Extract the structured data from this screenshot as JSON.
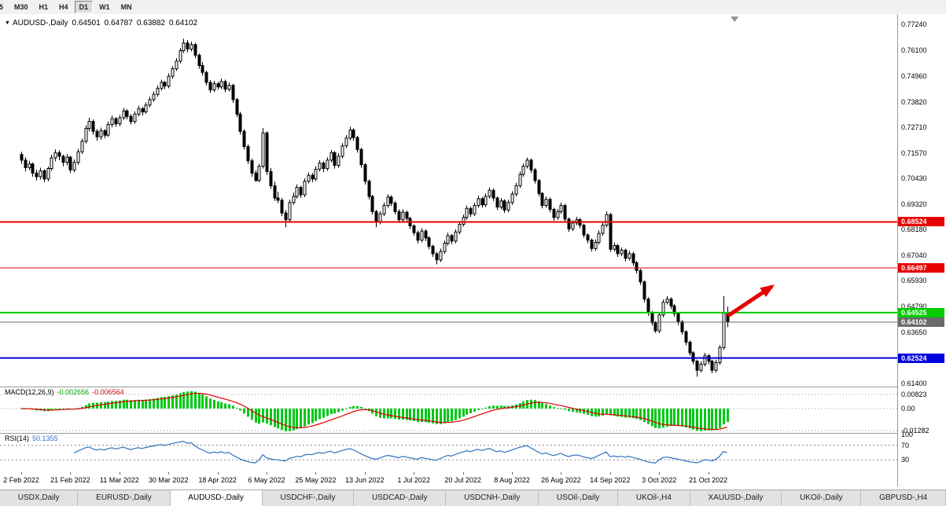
{
  "toolbar": {
    "periods": [
      {
        "label": "5",
        "active": false
      },
      {
        "label": "M30",
        "active": false
      },
      {
        "label": "H1",
        "active": false
      },
      {
        "label": "H4",
        "active": false
      },
      {
        "label": "D1",
        "active": true
      },
      {
        "label": "W1",
        "active": false
      },
      {
        "label": "MN",
        "active": false
      }
    ]
  },
  "chart": {
    "title": {
      "dropdown_icon": "▼",
      "symbol": "AUDUSD-,Daily",
      "open": "0.64501",
      "high": "0.64787",
      "low": "0.63882",
      "close": "0.64102"
    }
  },
  "chart_data": {
    "type": "candlestick",
    "symbol": "AUDUSD",
    "timeframe": "Daily",
    "y_axis": {
      "labels": [
        "0.77240",
        "0.76100",
        "0.74960",
        "0.73820",
        "0.72710",
        "0.71570",
        "0.70430",
        "0.69320",
        "0.68180",
        "0.67040",
        "0.65930",
        "0.64790",
        "0.63650",
        "0.62510",
        "0.61400"
      ],
      "top_price": 0.7724,
      "bottom_price": 0.614
    },
    "x_axis_labels": [
      "2 Feb 2022",
      "21 Feb 2022",
      "11 Mar 2022",
      "30 Mar 2022",
      "18 Apr 2022",
      "6 May 2022",
      "25 May 2022",
      "13 Jun 2022",
      "1 Jul 2022",
      "20 Jul 2022",
      "8 Aug 2022",
      "26 Aug 2022",
      "14 Sep 2022",
      "3 Oct 2022",
      "21 Oct 2022"
    ],
    "x_label_step": 13,
    "levels": [
      {
        "price": 0.68524,
        "label": "0.68524",
        "color": "#e60000",
        "thickness": 2,
        "role": "resistance"
      },
      {
        "price": 0.66497,
        "label": "0.66497",
        "color": "#e60000",
        "thickness": 1,
        "role": "resistance"
      },
      {
        "price": 0.64525,
        "label": "0.64525",
        "color": "#00cc00",
        "thickness": 2,
        "role": "support"
      },
      {
        "price": 0.64102,
        "label": "0.64102",
        "color": "#6b6b6b",
        "thickness": 1,
        "role": "last-price"
      },
      {
        "price": 0.62524,
        "label": "0.62524",
        "color": "#0000dd",
        "thickness": 2,
        "role": "support"
      }
    ],
    "candles": [
      [
        0.715,
        0.7162,
        0.7108,
        0.7125
      ],
      [
        0.7125,
        0.7138,
        0.7075,
        0.7092
      ],
      [
        0.7092,
        0.7122,
        0.708,
        0.7108
      ],
      [
        0.7108,
        0.7115,
        0.7052,
        0.7068
      ],
      [
        0.7068,
        0.7082,
        0.7035,
        0.7052
      ],
      [
        0.7052,
        0.7092,
        0.704,
        0.7078
      ],
      [
        0.7078,
        0.7085,
        0.7028,
        0.7042
      ],
      [
        0.7042,
        0.7098,
        0.7032,
        0.7088
      ],
      [
        0.7088,
        0.7148,
        0.7078,
        0.7135
      ],
      [
        0.7135,
        0.7172,
        0.712,
        0.7158
      ],
      [
        0.7158,
        0.7168,
        0.7125,
        0.7142
      ],
      [
        0.7142,
        0.715,
        0.7098,
        0.7115
      ],
      [
        0.7115,
        0.7152,
        0.7102,
        0.7138
      ],
      [
        0.7138,
        0.7145,
        0.7068,
        0.7082
      ],
      [
        0.7082,
        0.7128,
        0.7072,
        0.7115
      ],
      [
        0.7115,
        0.7175,
        0.7105,
        0.7162
      ],
      [
        0.7162,
        0.722,
        0.7152,
        0.7208
      ],
      [
        0.7208,
        0.7278,
        0.7198,
        0.7265
      ],
      [
        0.7265,
        0.7312,
        0.7252,
        0.7296
      ],
      [
        0.7296,
        0.7305,
        0.7238,
        0.7252
      ],
      [
        0.7252,
        0.7262,
        0.721,
        0.7228
      ],
      [
        0.7228,
        0.7268,
        0.7215,
        0.7255
      ],
      [
        0.7255,
        0.7262,
        0.7222,
        0.7235
      ],
      [
        0.7235,
        0.7295,
        0.7228,
        0.7282
      ],
      [
        0.7282,
        0.7322,
        0.727,
        0.7308
      ],
      [
        0.7308,
        0.7315,
        0.7272,
        0.7285
      ],
      [
        0.7285,
        0.7325,
        0.7275,
        0.7312
      ],
      [
        0.7312,
        0.7355,
        0.7302,
        0.7342
      ],
      [
        0.7342,
        0.735,
        0.7305,
        0.7318
      ],
      [
        0.7318,
        0.7328,
        0.7282,
        0.7295
      ],
      [
        0.7295,
        0.734,
        0.7285,
        0.7328
      ],
      [
        0.7328,
        0.7365,
        0.7318,
        0.7352
      ],
      [
        0.7352,
        0.736,
        0.7322,
        0.7338
      ],
      [
        0.7338,
        0.738,
        0.733,
        0.7368
      ],
      [
        0.7368,
        0.7405,
        0.7358,
        0.7392
      ],
      [
        0.7392,
        0.7428,
        0.7382,
        0.7415
      ],
      [
        0.7415,
        0.7455,
        0.7405,
        0.7442
      ],
      [
        0.7442,
        0.748,
        0.7432,
        0.7468
      ],
      [
        0.7468,
        0.7475,
        0.7438,
        0.7452
      ],
      [
        0.7452,
        0.7508,
        0.7442,
        0.7495
      ],
      [
        0.7495,
        0.754,
        0.7485,
        0.7528
      ],
      [
        0.7528,
        0.7575,
        0.7518,
        0.7562
      ],
      [
        0.7562,
        0.762,
        0.7552,
        0.7608
      ],
      [
        0.7608,
        0.7661,
        0.7598,
        0.7642
      ],
      [
        0.7642,
        0.7655,
        0.76,
        0.7615
      ],
      [
        0.7615,
        0.7648,
        0.7605,
        0.7635
      ],
      [
        0.7635,
        0.7642,
        0.7575,
        0.7588
      ],
      [
        0.7588,
        0.7595,
        0.7528,
        0.7542
      ],
      [
        0.7542,
        0.7558,
        0.7498,
        0.7512
      ],
      [
        0.7512,
        0.752,
        0.7455,
        0.7468
      ],
      [
        0.7468,
        0.7478,
        0.7422,
        0.7435
      ],
      [
        0.7435,
        0.7475,
        0.7425,
        0.7462
      ],
      [
        0.7462,
        0.747,
        0.7435,
        0.7448
      ],
      [
        0.7448,
        0.7485,
        0.7438,
        0.7472
      ],
      [
        0.7472,
        0.748,
        0.7425,
        0.7438
      ],
      [
        0.7438,
        0.7468,
        0.7428,
        0.7455
      ],
      [
        0.7455,
        0.7462,
        0.7378,
        0.7392
      ],
      [
        0.7392,
        0.74,
        0.7315,
        0.7328
      ],
      [
        0.7328,
        0.7338,
        0.7238,
        0.7252
      ],
      [
        0.7252,
        0.7262,
        0.7172,
        0.7185
      ],
      [
        0.7185,
        0.7195,
        0.7108,
        0.7122
      ],
      [
        0.7122,
        0.7132,
        0.7052,
        0.7068
      ],
      [
        0.7068,
        0.708,
        0.703,
        0.7035
      ],
      [
        0.7035,
        0.7108,
        0.7028,
        0.7098
      ],
      [
        0.7098,
        0.7266,
        0.7088,
        0.7245
      ],
      [
        0.7245,
        0.7252,
        0.706,
        0.7075
      ],
      [
        0.7075,
        0.709,
        0.6998,
        0.7012
      ],
      [
        0.7012,
        0.703,
        0.6945,
        0.6958
      ],
      [
        0.6958,
        0.6985,
        0.6935,
        0.6948
      ],
      [
        0.6948,
        0.6958,
        0.6878,
        0.6892
      ],
      [
        0.6892,
        0.6905,
        0.6829,
        0.6862
      ],
      [
        0.6862,
        0.695,
        0.6852,
        0.6938
      ],
      [
        0.6938,
        0.6982,
        0.6928,
        0.6965
      ],
      [
        0.6965,
        0.7018,
        0.6955,
        0.7005
      ],
      [
        0.7005,
        0.7012,
        0.6958,
        0.6972
      ],
      [
        0.6972,
        0.7045,
        0.6962,
        0.7032
      ],
      [
        0.7032,
        0.707,
        0.7022,
        0.7058
      ],
      [
        0.7058,
        0.7068,
        0.7028,
        0.7042
      ],
      [
        0.7042,
        0.7098,
        0.7032,
        0.7085
      ],
      [
        0.7085,
        0.7125,
        0.7075,
        0.7112
      ],
      [
        0.7112,
        0.712,
        0.7072,
        0.7088
      ],
      [
        0.7088,
        0.7138,
        0.7078,
        0.7125
      ],
      [
        0.7125,
        0.717,
        0.7115,
        0.7158
      ],
      [
        0.7158,
        0.7165,
        0.7088,
        0.7102
      ],
      [
        0.7102,
        0.7155,
        0.7092,
        0.7142
      ],
      [
        0.7142,
        0.72,
        0.7132,
        0.7188
      ],
      [
        0.7188,
        0.7235,
        0.7178,
        0.7222
      ],
      [
        0.7222,
        0.7272,
        0.7212,
        0.7258
      ],
      [
        0.7258,
        0.7265,
        0.721,
        0.7225
      ],
      [
        0.7225,
        0.7232,
        0.7158,
        0.7172
      ],
      [
        0.7172,
        0.718,
        0.7092,
        0.7105
      ],
      [
        0.7105,
        0.7112,
        0.7018,
        0.7032
      ],
      [
        0.7032,
        0.704,
        0.6952,
        0.6965
      ],
      [
        0.6965,
        0.6972,
        0.6885,
        0.6898
      ],
      [
        0.6898,
        0.6905,
        0.6829,
        0.6852
      ],
      [
        0.6852,
        0.69,
        0.6842,
        0.6888
      ],
      [
        0.6888,
        0.6938,
        0.6878,
        0.6925
      ],
      [
        0.6925,
        0.6975,
        0.6915,
        0.6962
      ],
      [
        0.6962,
        0.697,
        0.6922,
        0.6935
      ],
      [
        0.6935,
        0.6945,
        0.6885,
        0.6898
      ],
      [
        0.6898,
        0.6908,
        0.6848,
        0.6862
      ],
      [
        0.6862,
        0.6908,
        0.6852,
        0.6895
      ],
      [
        0.6895,
        0.6902,
        0.6855,
        0.6868
      ],
      [
        0.6868,
        0.6875,
        0.6822,
        0.6835
      ],
      [
        0.6835,
        0.6842,
        0.6792,
        0.6805
      ],
      [
        0.6805,
        0.6815,
        0.6758,
        0.6772
      ],
      [
        0.6772,
        0.6825,
        0.6762,
        0.6812
      ],
      [
        0.6812,
        0.682,
        0.6768,
        0.6782
      ],
      [
        0.6782,
        0.679,
        0.6732,
        0.6745
      ],
      [
        0.6745,
        0.6752,
        0.6698,
        0.6712
      ],
      [
        0.6712,
        0.672,
        0.6665,
        0.6685
      ],
      [
        0.6685,
        0.6735,
        0.6675,
        0.6722
      ],
      [
        0.6722,
        0.677,
        0.6712,
        0.6758
      ],
      [
        0.6758,
        0.6805,
        0.6748,
        0.6792
      ],
      [
        0.6792,
        0.68,
        0.6755,
        0.6768
      ],
      [
        0.6768,
        0.682,
        0.6758,
        0.6808
      ],
      [
        0.6808,
        0.6855,
        0.6798,
        0.6842
      ],
      [
        0.6842,
        0.6885,
        0.6832,
        0.6872
      ],
      [
        0.6872,
        0.6925,
        0.6862,
        0.6912
      ],
      [
        0.6912,
        0.692,
        0.6875,
        0.6888
      ],
      [
        0.6888,
        0.6938,
        0.6878,
        0.6925
      ],
      [
        0.6925,
        0.6968,
        0.6915,
        0.6955
      ],
      [
        0.6955,
        0.6962,
        0.6915,
        0.6928
      ],
      [
        0.6928,
        0.6978,
        0.6918,
        0.6965
      ],
      [
        0.6965,
        0.7005,
        0.6955,
        0.6992
      ],
      [
        0.6992,
        0.7,
        0.6945,
        0.6958
      ],
      [
        0.6958,
        0.6965,
        0.6905,
        0.6918
      ],
      [
        0.6918,
        0.6958,
        0.6908,
        0.6945
      ],
      [
        0.6945,
        0.6952,
        0.6892,
        0.6905
      ],
      [
        0.6905,
        0.695,
        0.6895,
        0.6938
      ],
      [
        0.6938,
        0.6988,
        0.6928,
        0.6975
      ],
      [
        0.6975,
        0.7025,
        0.6965,
        0.7012
      ],
      [
        0.7012,
        0.7075,
        0.7002,
        0.7062
      ],
      [
        0.7062,
        0.711,
        0.7052,
        0.7098
      ],
      [
        0.7098,
        0.7136,
        0.7088,
        0.7125
      ],
      [
        0.7125,
        0.7132,
        0.7068,
        0.7082
      ],
      [
        0.7082,
        0.709,
        0.7022,
        0.7035
      ],
      [
        0.7035,
        0.7042,
        0.6965,
        0.6978
      ],
      [
        0.6978,
        0.6985,
        0.6912,
        0.6925
      ],
      [
        0.6925,
        0.6965,
        0.6915,
        0.6952
      ],
      [
        0.6952,
        0.696,
        0.6895,
        0.6908
      ],
      [
        0.6908,
        0.6915,
        0.6858,
        0.6872
      ],
      [
        0.6872,
        0.691,
        0.6862,
        0.6898
      ],
      [
        0.6898,
        0.6938,
        0.6888,
        0.6925
      ],
      [
        0.6925,
        0.6932,
        0.6852,
        0.6865
      ],
      [
        0.6865,
        0.6872,
        0.6808,
        0.6822
      ],
      [
        0.6822,
        0.686,
        0.6812,
        0.6848
      ],
      [
        0.6848,
        0.6875,
        0.6838,
        0.6862
      ],
      [
        0.6862,
        0.687,
        0.6825,
        0.6838
      ],
      [
        0.6838,
        0.6845,
        0.6782,
        0.6795
      ],
      [
        0.6795,
        0.6802,
        0.6758,
        0.6772
      ],
      [
        0.6772,
        0.678,
        0.6722,
        0.6735
      ],
      [
        0.6735,
        0.6775,
        0.6725,
        0.6762
      ],
      [
        0.6762,
        0.6815,
        0.6752,
        0.6802
      ],
      [
        0.6802,
        0.685,
        0.6792,
        0.6838
      ],
      [
        0.6838,
        0.6898,
        0.6828,
        0.6885
      ],
      [
        0.6885,
        0.6892,
        0.672,
        0.6732
      ],
      [
        0.6732,
        0.6762,
        0.6722,
        0.6748
      ],
      [
        0.6748,
        0.6755,
        0.6698,
        0.6712
      ],
      [
        0.6712,
        0.674,
        0.6702,
        0.6728
      ],
      [
        0.6728,
        0.6735,
        0.6678,
        0.6692
      ],
      [
        0.6692,
        0.6725,
        0.6682,
        0.6712
      ],
      [
        0.6712,
        0.672,
        0.6658,
        0.6672
      ],
      [
        0.6672,
        0.668,
        0.6625,
        0.6638
      ],
      [
        0.6638,
        0.6645,
        0.6575,
        0.6588
      ],
      [
        0.6588,
        0.6595,
        0.6498,
        0.6512
      ],
      [
        0.6512,
        0.652,
        0.6438,
        0.6452
      ],
      [
        0.6452,
        0.646,
        0.6395,
        0.6408
      ],
      [
        0.6408,
        0.6415,
        0.6363,
        0.6372
      ],
      [
        0.6372,
        0.6455,
        0.6362,
        0.6442
      ],
      [
        0.6442,
        0.651,
        0.6432,
        0.6498
      ],
      [
        0.6498,
        0.6525,
        0.6488,
        0.6512
      ],
      [
        0.6512,
        0.652,
        0.6468,
        0.6482
      ],
      [
        0.6482,
        0.649,
        0.6435,
        0.6448
      ],
      [
        0.6448,
        0.6455,
        0.6398,
        0.6412
      ],
      [
        0.6412,
        0.642,
        0.6355,
        0.6368
      ],
      [
        0.6368,
        0.6375,
        0.6308,
        0.6322
      ],
      [
        0.6322,
        0.633,
        0.6262,
        0.6275
      ],
      [
        0.6275,
        0.6282,
        0.6225,
        0.6238
      ],
      [
        0.6238,
        0.6245,
        0.617,
        0.6198
      ],
      [
        0.6198,
        0.6238,
        0.6188,
        0.6225
      ],
      [
        0.6225,
        0.6275,
        0.6215,
        0.6262
      ],
      [
        0.6262,
        0.627,
        0.6225,
        0.6238
      ],
      [
        0.6238,
        0.6245,
        0.6185,
        0.6198
      ],
      [
        0.6198,
        0.6245,
        0.6188,
        0.6232
      ],
      [
        0.6232,
        0.631,
        0.6222,
        0.6298
      ],
      [
        0.6298,
        0.6525,
        0.6288,
        0.645
      ],
      [
        0.64501,
        0.64787,
        0.63882,
        0.64102
      ]
    ],
    "indicators": [
      {
        "name": "MACD",
        "label": "MACD(12,26,9)",
        "value_main": "-0.002656",
        "value_signal": "-0.006564",
        "axis_labels": [
          "0.00823",
          "0.00",
          "-0.01282"
        ],
        "scale_max": 0.00823,
        "scale_min": -0.01282,
        "histogram_color": "#00c816",
        "signal_color": "#e00000"
      },
      {
        "name": "RSI",
        "label": "RSI(14)",
        "value": "50.1355",
        "axis_labels": [
          "100",
          "70",
          "30"
        ],
        "level_lines": [
          70,
          30
        ],
        "line_color": "#3070c0"
      }
    ],
    "annotations": [
      {
        "type": "arrow",
        "color": "#e60000",
        "from_index": 187.2,
        "from_price": 0.6438,
        "to_index": 198.9,
        "to_price": 0.6568
      }
    ],
    "shift_marker_index": 189
  },
  "tabs": {
    "items": [
      {
        "label": "USDX,Daily",
        "active": false
      },
      {
        "label": "EURUSD-,Daily",
        "active": false
      },
      {
        "label": "AUDUSD-,Daily",
        "active": true
      },
      {
        "label": "USDCHF-,Daily",
        "active": false
      },
      {
        "label": "USDCAD-,Daily",
        "active": false
      },
      {
        "label": "USDCNH-,Daily",
        "active": false
      },
      {
        "label": "USOil-,Daily",
        "active": false
      },
      {
        "label": "UKOil-,H4",
        "active": false
      },
      {
        "label": "XAUUSD-,Daily",
        "active": false
      },
      {
        "label": "UKOil-,Daily",
        "active": false
      },
      {
        "label": "GBPUSD-,H4",
        "active": false
      }
    ]
  }
}
